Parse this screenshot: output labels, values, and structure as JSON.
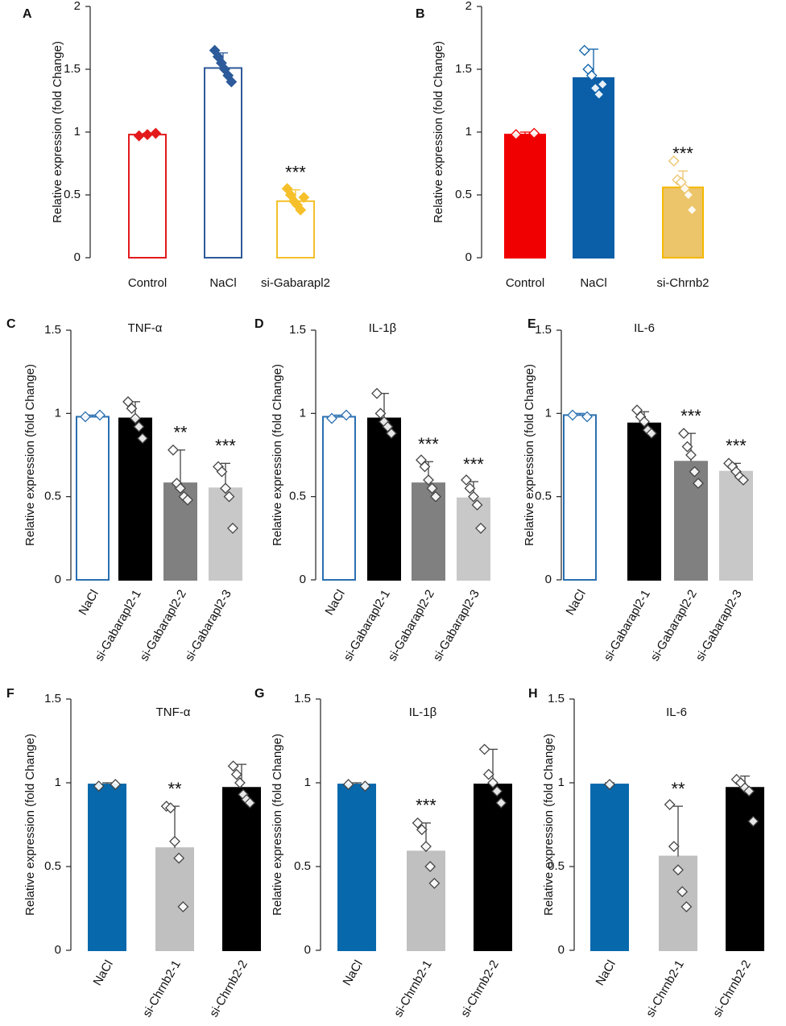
{
  "chart_data": [
    {
      "type": "bar",
      "panel": "A",
      "ylabel": "Relative expression (fold Change)",
      "categories": [
        "Control",
        "NaCl",
        "si-Gabarapl2"
      ],
      "values": [
        0.98,
        1.51,
        0.45
      ],
      "errors": [
        0.01,
        0.12,
        0.09
      ],
      "points": [
        [
          0.97,
          0.98,
          0.99
        ],
        [
          1.65,
          1.6,
          1.55,
          1.5,
          1.45,
          1.4
        ],
        [
          0.55,
          0.5,
          0.45,
          0.42,
          0.38,
          0.48
        ]
      ],
      "significance": [
        null,
        null,
        "***"
      ],
      "colors": [
        "#e31a1c",
        "#2d5a9a",
        "#f5c02a"
      ],
      "hollow": [
        true,
        true,
        true
      ],
      "points_filled": true,
      "ylim": [
        0,
        2
      ],
      "yticks": [
        0,
        0.5,
        1,
        1.5,
        2
      ]
    },
    {
      "type": "bar",
      "panel": "B",
      "ylabel": "Relative expression (fold Change)",
      "categories": [
        "Control",
        "NaCl",
        "si-Chrnb2"
      ],
      "values": [
        0.98,
        1.43,
        0.56
      ],
      "errors": [
        0.02,
        0.23,
        0.13
      ],
      "points": [
        [
          0.98,
          0.99
        ],
        [
          1.65,
          1.5,
          1.45,
          1.35,
          1.3,
          1.38
        ],
        [
          0.77,
          0.62,
          0.6,
          0.55,
          0.5,
          0.38
        ]
      ],
      "significance": [
        null,
        null,
        "***"
      ],
      "colors": [
        "#f00000",
        "#0a5fa8",
        "#ecc46a"
      ],
      "hollow": [
        false,
        false,
        false
      ],
      "points_filled": false,
      "ylim": [
        0,
        2
      ],
      "yticks": [
        0,
        0.5,
        1,
        1.5,
        2
      ]
    },
    {
      "type": "bar",
      "panel": "C",
      "title": "TNF-α",
      "ylabel": "Relative expression (fold Change)",
      "categories": [
        "NaCl",
        "si-Gabarapl2-1",
        "si-Gabarapl2-2",
        "si-Gabarapl2-3"
      ],
      "values": [
        0.98,
        0.97,
        0.58,
        0.55
      ],
      "errors": [
        0.01,
        0.1,
        0.2,
        0.15
      ],
      "points": [
        [
          0.98,
          0.99
        ],
        [
          1.07,
          1.03,
          0.97,
          0.92,
          0.85
        ],
        [
          0.78,
          0.58,
          0.55,
          0.5,
          0.48
        ],
        [
          0.68,
          0.65,
          0.55,
          0.5,
          0.31
        ]
      ],
      "significance": [
        null,
        null,
        "**",
        "***"
      ],
      "colors": [
        "#2a6fb0",
        "#000000",
        "#808080",
        "#c8c8c8"
      ],
      "hollow": [
        true,
        false,
        false,
        false
      ],
      "points_filled": false,
      "point_edge": "#444444",
      "ylim": [
        0,
        1.5
      ],
      "yticks": [
        0,
        0.5,
        1,
        1.5
      ]
    },
    {
      "type": "bar",
      "panel": "D",
      "title": "IL-1β",
      "ylabel": "Relative expression (fold Change)",
      "categories": [
        "NaCl",
        "si-Gabarapl2-1",
        "si-Gabarapl2-2",
        "si-Gabarapl2-3"
      ],
      "values": [
        0.98,
        0.97,
        0.58,
        0.49
      ],
      "errors": [
        0.01,
        0.15,
        0.13,
        0.1
      ],
      "points": [
        [
          0.97,
          0.99
        ],
        [
          1.12,
          1.0,
          0.95,
          0.92,
          0.88
        ],
        [
          0.72,
          0.68,
          0.6,
          0.55,
          0.5
        ],
        [
          0.6,
          0.55,
          0.5,
          0.45,
          0.31
        ]
      ],
      "significance": [
        null,
        null,
        "***",
        "***"
      ],
      "colors": [
        "#2a6fb0",
        "#000000",
        "#808080",
        "#c8c8c8"
      ],
      "hollow": [
        true,
        false,
        false,
        false
      ],
      "points_filled": false,
      "point_edge": "#444444",
      "ylim": [
        0,
        1.5
      ],
      "yticks": [
        0,
        0.5,
        1,
        1.5
      ]
    },
    {
      "type": "bar",
      "panel": "E",
      "title": "IL-6",
      "ylabel": "Relative expression (fold Change)",
      "categories": [
        "NaCl",
        "si-Gabarapl2-1",
        "si-Gabarapl2-2",
        "si-Gabarapl2-3"
      ],
      "values": [
        0.99,
        0.94,
        0.71,
        0.65
      ],
      "errors": [
        0.01,
        0.07,
        0.17,
        0.05
      ],
      "points": [
        [
          0.99,
          0.98
        ],
        [
          1.02,
          0.98,
          0.95,
          0.9,
          0.88
        ],
        [
          0.88,
          0.8,
          0.75,
          0.65,
          0.58
        ],
        [
          0.7,
          0.68,
          0.65,
          0.62,
          0.6
        ]
      ],
      "significance": [
        null,
        null,
        "***",
        "***"
      ],
      "colors": [
        "#2a6fb0",
        "#000000",
        "#808080",
        "#c8c8c8"
      ],
      "hollow": [
        true,
        false,
        false,
        false
      ],
      "points_filled": false,
      "point_edge": "#444444",
      "ylim": [
        0,
        1.5
      ],
      "yticks": [
        0,
        0.5,
        1,
        1.5
      ]
    },
    {
      "type": "bar",
      "panel": "F",
      "title": "TNF-α",
      "ylabel": "Relative expression (fold Change)",
      "categories": [
        "NaCl",
        "si-Chrnb2-1",
        "si-Chrnb2-2"
      ],
      "values": [
        0.99,
        0.61,
        0.97
      ],
      "errors": [
        0.01,
        0.25,
        0.14
      ],
      "points": [
        [
          0.98,
          0.99
        ],
        [
          0.86,
          0.85,
          0.65,
          0.55,
          0.26
        ],
        [
          1.1,
          1.05,
          1.0,
          0.93,
          0.9,
          0.88
        ]
      ],
      "significance": [
        null,
        "**",
        null
      ],
      "colors": [
        "#0868ac",
        "#c0c0c0",
        "#000000"
      ],
      "hollow": [
        false,
        false,
        false
      ],
      "points_filled": false,
      "point_edge": "#444444",
      "ylim": [
        0,
        1.5
      ],
      "yticks": [
        0,
        0.5,
        1,
        1.5
      ]
    },
    {
      "type": "bar",
      "panel": "G",
      "title": "IL-1β",
      "ylabel": "Relative expression (fold Change)",
      "categories": [
        "NaCl",
        "si-Chrnb2-1",
        "si-Chrnb2-2"
      ],
      "values": [
        0.99,
        0.59,
        0.99
      ],
      "errors": [
        0.01,
        0.17,
        0.21
      ],
      "points": [
        [
          0.99,
          0.98
        ],
        [
          0.76,
          0.72,
          0.62,
          0.5,
          0.4
        ],
        [
          1.2,
          1.05,
          1.0,
          0.95,
          0.88
        ]
      ],
      "significance": [
        null,
        "***",
        null
      ],
      "colors": [
        "#0868ac",
        "#c0c0c0",
        "#000000"
      ],
      "hollow": [
        false,
        false,
        false
      ],
      "points_filled": false,
      "point_edge": "#444444",
      "ylim": [
        0,
        1.5
      ],
      "yticks": [
        0,
        0.5,
        1,
        1.5
      ]
    },
    {
      "type": "bar",
      "panel": "H",
      "title": "IL-6",
      "ylabel": "Relative expression (fold Change)",
      "categories": [
        "NaCl",
        "si-Chrnb2-1",
        "si-Chrnb2-2"
      ],
      "values": [
        0.99,
        0.56,
        0.97
      ],
      "errors": [
        0.01,
        0.3,
        0.07
      ],
      "points": [
        [
          0.99
        ],
        [
          0.87,
          0.62,
          0.48,
          0.35,
          0.26
        ],
        [
          1.02,
          1.0,
          0.97,
          0.95,
          0.77
        ]
      ],
      "significance": [
        null,
        "**",
        null
      ],
      "colors": [
        "#0868ac",
        "#c0c0c0",
        "#000000"
      ],
      "hollow": [
        false,
        false,
        false
      ],
      "points_filled": false,
      "point_edge": "#444444",
      "ylim": [
        0,
        1.5
      ],
      "yticks": [
        0,
        0.5,
        1,
        1.5
      ]
    }
  ]
}
